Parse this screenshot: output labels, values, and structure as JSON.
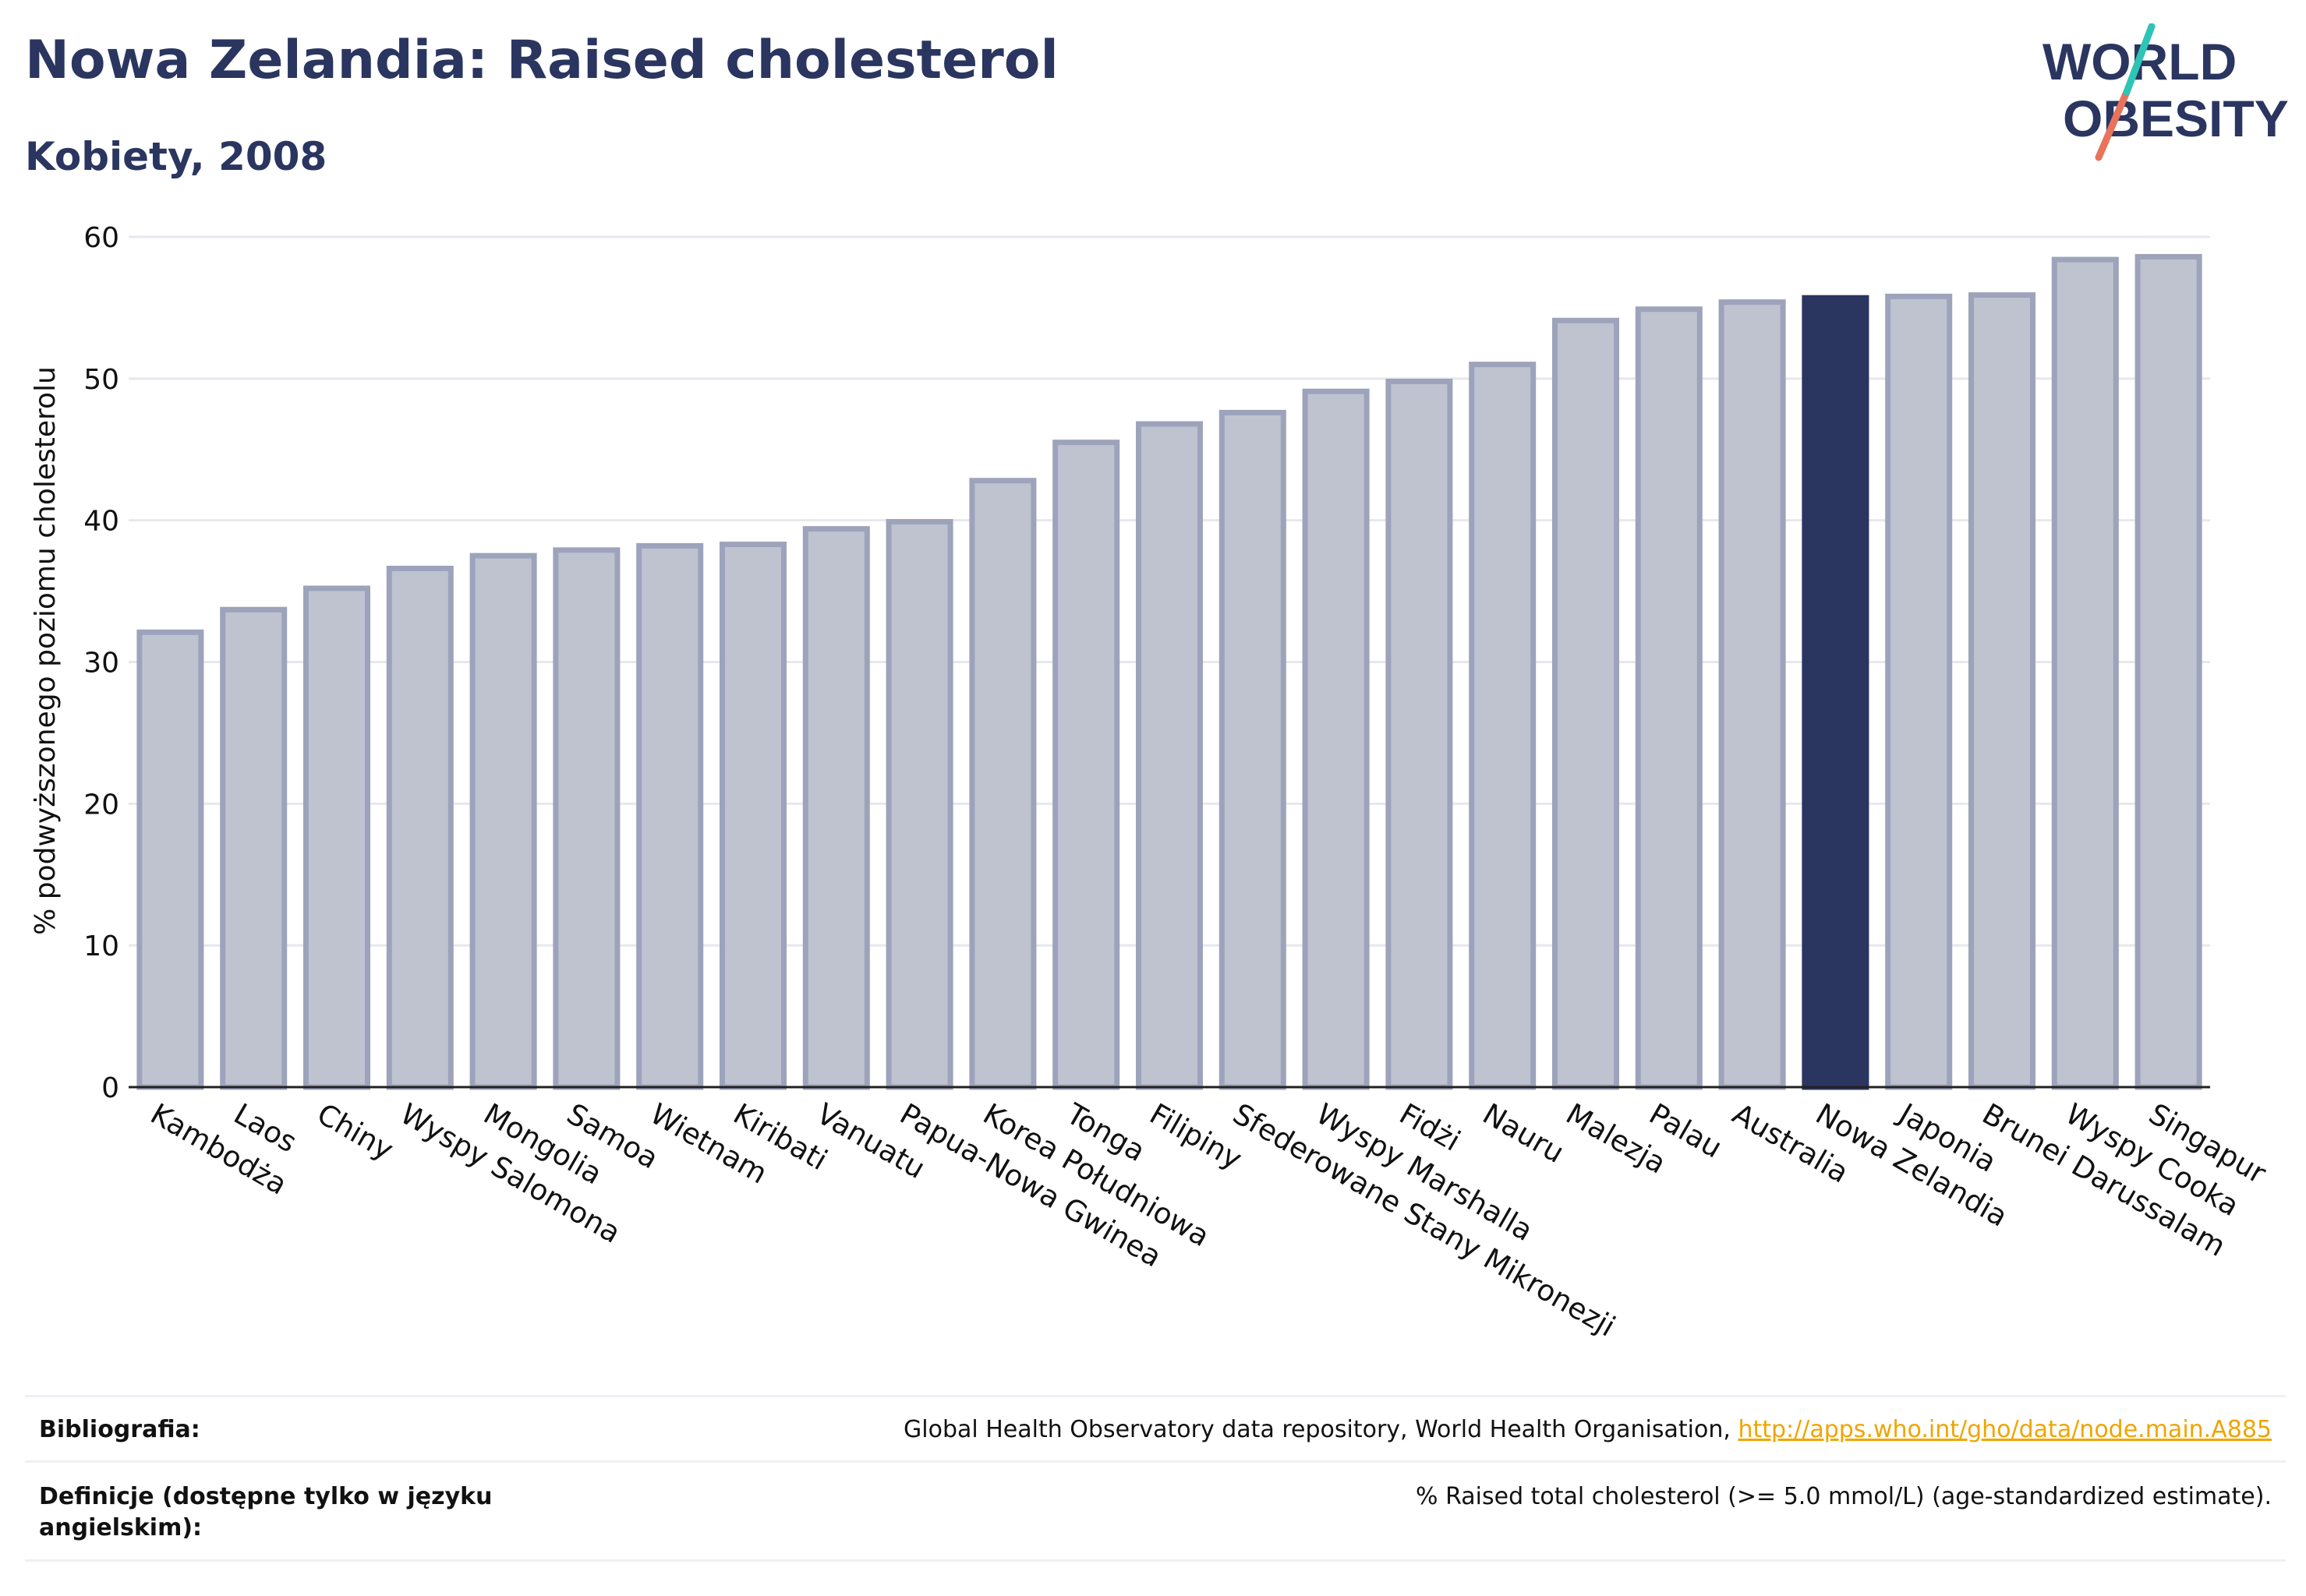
{
  "header": {
    "title": "Nowa Zelandia: Raised cholesterol",
    "subtitle": "Kobiety, 2008"
  },
  "logo": {
    "line1": "WORLD",
    "line2": "OBESITY",
    "accent_colors": [
      "#2ec4b6",
      "#e8735a"
    ]
  },
  "colors": {
    "bar": "#bfc3d0",
    "bar_border": "#9da3bb",
    "highlight": "#2a3560",
    "text": "#2a3560",
    "link": "#f0a500"
  },
  "chart_data": {
    "type": "bar",
    "ylabel": "% podwyższonego poziomu cholesterolu",
    "xlabel": "",
    "ylim": [
      0,
      60
    ],
    "yticks": [
      0,
      10,
      20,
      30,
      40,
      50,
      60
    ],
    "grid": true,
    "highlight": "Nowa Zelandia",
    "categories": [
      "Kambodża",
      "Laos",
      "Chiny",
      "Wyspy Salomona",
      "Mongolia",
      "Samoa",
      "Wietnam",
      "Kiribati",
      "Vanuatu",
      "Papua-Nowa Gwinea",
      "Korea Południowa",
      "Tonga",
      "Filipiny",
      "Sfederowane Stany Mikronezji",
      "Wyspy Marshalla",
      "Fidżi",
      "Nauru",
      "Malezja",
      "Palau",
      "Australia",
      "Nowa Zelandia",
      "Japonia",
      "Brunei Darussalam",
      "Wyspy Cooka",
      "Singapur"
    ],
    "values": [
      32.1,
      33.7,
      35.2,
      36.6,
      37.5,
      37.9,
      38.2,
      38.3,
      39.4,
      39.9,
      42.8,
      45.5,
      46.8,
      47.6,
      49.1,
      49.8,
      51.0,
      54.1,
      54.9,
      55.4,
      55.7,
      55.8,
      55.9,
      58.4,
      58.6
    ]
  },
  "footer": {
    "bibliography_label": "Bibliografia:",
    "bibliography_text": "Global Health Observatory data repository, World Health Organisation, ",
    "bibliography_link": "http://apps.who.int/gho/data/node.main.A885",
    "definitions_label": "Definicje (dostępne tylko w języku angielskim):",
    "definitions_text": "% Raised total cholesterol (>= 5.0 mmol/L) (age-standardized estimate)."
  }
}
